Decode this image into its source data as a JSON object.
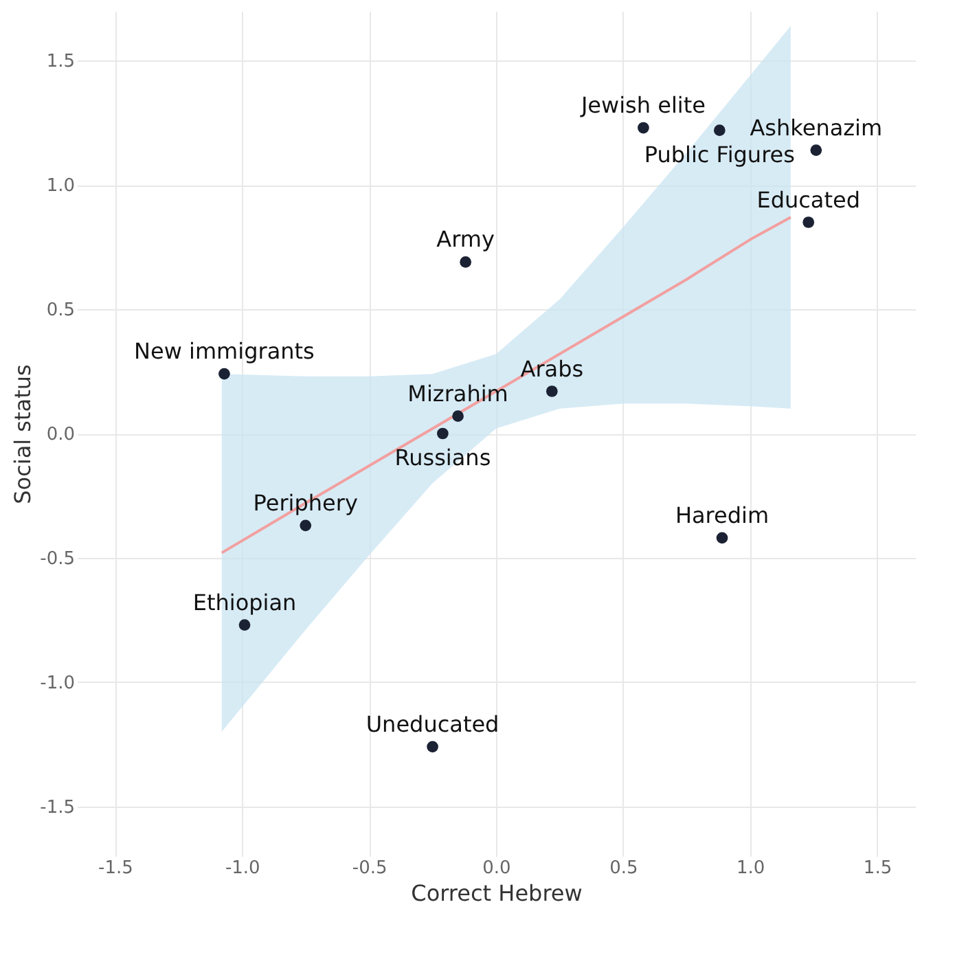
{
  "chart_data": {
    "type": "scatter",
    "xlabel": "Correct Hebrew",
    "ylabel": "Social status",
    "xlim": [
      -1.65,
      1.65
    ],
    "ylim": [
      -1.7,
      1.7
    ],
    "xticks": [
      -1.5,
      {
        "value": -1,
        "label": "-1.0"
      },
      -0.5,
      {
        "value": 0,
        "label": "0.0"
      },
      0.5,
      {
        "value": 1,
        "label": "1.0"
      },
      1.5
    ],
    "yticks": [
      -1.5,
      {
        "value": -1,
        "label": "-1.0"
      },
      -0.5,
      {
        "value": 0,
        "label": "0.0"
      },
      0.5,
      {
        "value": 1,
        "label": "1.0"
      },
      1.5
    ],
    "grid": true,
    "series": [
      {
        "type": "line",
        "color": "#f2a0a0",
        "x": [
          -1.08,
          -0.75,
          -0.5,
          -0.25,
          0,
          0.25,
          0.5,
          0.75,
          1.0,
          1.16
        ],
        "values": [
          -0.48,
          -0.28,
          -0.13,
          0.02,
          0.17,
          0.32,
          0.47,
          0.62,
          0.78,
          0.87
        ],
        "lower": [
          -1.2,
          -0.79,
          -0.49,
          -0.2,
          0.02,
          0.1,
          0.12,
          0.12,
          0.11,
          0.1
        ],
        "upper": [
          0.24,
          0.23,
          0.23,
          0.24,
          0.32,
          0.54,
          0.83,
          1.13,
          1.44,
          1.64
        ]
      },
      {
        "marker": "circle",
        "color": "#1b2233",
        "x": [
          0.58,
          0.88,
          1.26,
          1.23,
          -0.12,
          -1.07,
          0.22,
          -0.15,
          -0.21,
          -0.75,
          0.89,
          -0.99,
          -0.25
        ],
        "values": [
          1.23,
          1.22,
          1.14,
          0.85,
          0.69,
          0.24,
          0.17,
          0.07,
          0.0,
          -0.37,
          -0.42,
          -0.77,
          -1.26
        ]
      }
    ],
    "annotations": [
      {
        "text": "Jewish elite",
        "x": 0.58,
        "y": 1.23
      },
      {
        "text": "Public Figures",
        "x": 0.88,
        "y": 1.22
      },
      {
        "text": "Ashkenazim",
        "x": 1.26,
        "y": 1.14
      },
      {
        "text": "Educated",
        "x": 1.23,
        "y": 0.85
      },
      {
        "text": "Army",
        "x": -0.12,
        "y": 0.69
      },
      {
        "text": "New immigrants",
        "x": -1.07,
        "y": 0.24
      },
      {
        "text": "Arabs",
        "x": 0.22,
        "y": 0.17
      },
      {
        "text": "Mizrahim",
        "x": -0.15,
        "y": 0.07
      },
      {
        "text": "Russians",
        "x": -0.21,
        "y": 0.0
      },
      {
        "text": "Periphery",
        "x": -0.75,
        "y": -0.37
      },
      {
        "text": "Haredim",
        "x": 0.89,
        "y": -0.42
      },
      {
        "text": "Ethiopian",
        "x": -0.99,
        "y": -0.77
      },
      {
        "text": "Uneducated",
        "x": -0.25,
        "y": -1.26
      }
    ]
  }
}
